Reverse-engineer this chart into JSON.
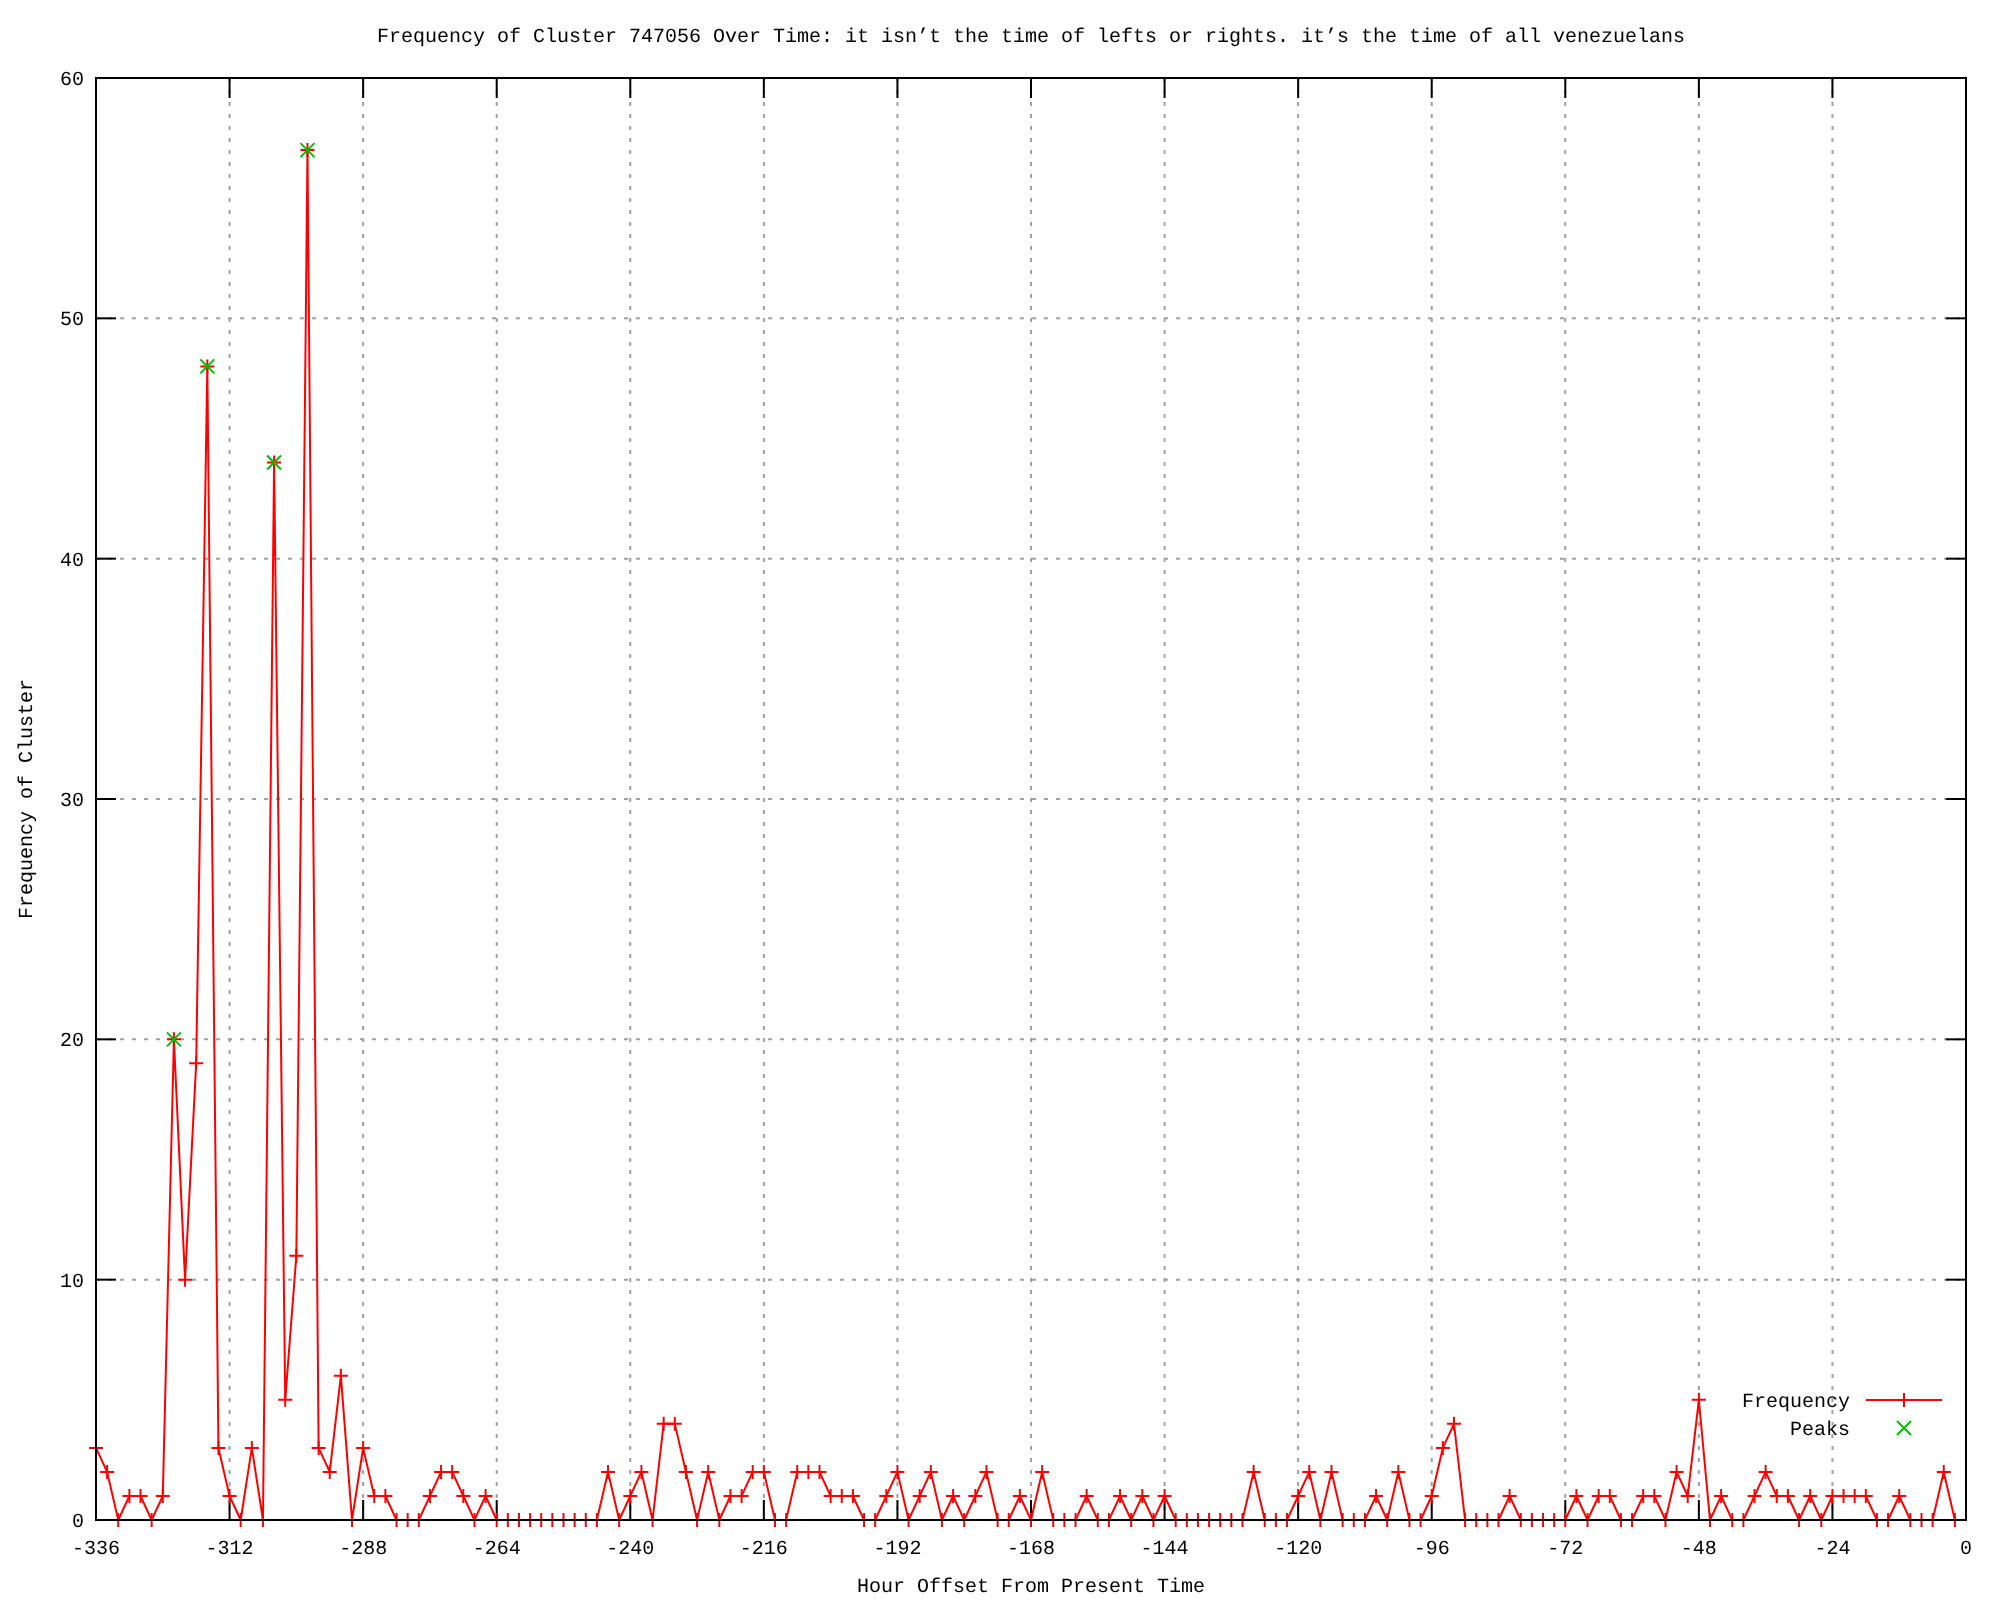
{
  "chart_data": {
    "type": "line",
    "title": "Frequency of Cluster 747056 Over Time: it isn’t the time of lefts or rights. it’s the time of all venezuelans",
    "xlabel": "Hour Offset From Present Time",
    "ylabel": "Frequency of Cluster",
    "xlim": [
      -336,
      0
    ],
    "ylim": [
      0,
      60
    ],
    "xticks": [
      -336,
      -312,
      -288,
      -264,
      -240,
      -216,
      -192,
      -168,
      -144,
      -120,
      -96,
      -72,
      -48,
      -24,
      0
    ],
    "yticks": [
      0,
      10,
      20,
      30,
      40,
      50,
      60
    ],
    "grid": true,
    "legend": "bottom right",
    "series": [
      {
        "name": "Frequency",
        "color": "#ff0000",
        "marker": "cross",
        "x": [
          -336,
          -334,
          -332,
          -330,
          -328,
          -326,
          -324,
          -322,
          -320,
          -318,
          -316,
          -314,
          -312,
          -310,
          -308,
          -306,
          -304,
          -302,
          -300,
          -298,
          -296,
          -294,
          -292,
          -290,
          -288,
          -286,
          -284,
          -282,
          -280,
          -278,
          -276,
          -274,
          -272,
          -270,
          -268,
          -266,
          -264,
          -262,
          -260,
          -258,
          -256,
          -254,
          -252,
          -250,
          -248,
          -246,
          -244,
          -242,
          -240,
          -238,
          -236,
          -234,
          -232,
          -230,
          -228,
          -226,
          -224,
          -222,
          -220,
          -218,
          -216,
          -214,
          -212,
          -210,
          -208,
          -206,
          -204,
          -202,
          -200,
          -198,
          -196,
          -194,
          -192,
          -190,
          -188,
          -186,
          -184,
          -182,
          -180,
          -178,
          -176,
          -174,
          -172,
          -170,
          -168,
          -166,
          -164,
          -162,
          -160,
          -158,
          -156,
          -154,
          -152,
          -150,
          -148,
          -146,
          -144,
          -142,
          -140,
          -138,
          -136,
          -134,
          -132,
          -130,
          -128,
          -126,
          -124,
          -122,
          -120,
          -118,
          -116,
          -114,
          -112,
          -110,
          -108,
          -106,
          -104,
          -102,
          -100,
          -98,
          -96,
          -94,
          -92,
          -90,
          -88,
          -86,
          -84,
          -82,
          -80,
          -78,
          -76,
          -74,
          -72,
          -70,
          -68,
          -66,
          -64,
          -62,
          -60,
          -58,
          -56,
          -54,
          -52,
          -50,
          -48,
          -46,
          -44,
          -42,
          -40,
          -38,
          -36,
          -34,
          -32,
          -30,
          -28,
          -26,
          -24,
          -22,
          -20,
          -18,
          -16,
          -14,
          -12,
          -10,
          -8,
          -6,
          -4,
          -2
        ],
        "values": [
          3,
          2,
          0,
          1,
          1,
          0,
          1,
          20,
          10,
          19,
          48,
          3,
          1,
          0,
          3,
          0,
          44,
          5,
          11,
          57,
          3,
          2,
          6,
          0,
          3,
          1,
          1,
          0,
          0,
          0,
          1,
          2,
          2,
          1,
          0,
          1,
          0,
          0,
          0,
          0,
          0,
          0,
          0,
          0,
          0,
          0,
          2,
          0,
          1,
          2,
          0,
          4,
          4,
          2,
          0,
          2,
          0,
          1,
          1,
          2,
          2,
          0,
          0,
          2,
          2,
          2,
          1,
          1,
          1,
          0,
          0,
          1,
          2,
          0,
          1,
          2,
          0,
          1,
          0,
          1,
          2,
          0,
          0,
          1,
          0,
          2,
          0,
          0,
          0,
          1,
          0,
          0,
          1,
          0,
          1,
          0,
          1,
          0,
          0,
          0,
          0,
          0,
          0,
          0,
          2,
          0,
          0,
          0,
          1,
          2,
          0,
          2,
          0,
          0,
          0,
          1,
          0,
          2,
          0,
          0,
          1,
          3,
          4,
          0,
          0,
          0,
          0,
          1,
          0,
          0,
          0,
          0,
          0,
          1,
          0,
          1,
          1,
          0,
          0,
          1,
          1,
          0,
          2,
          1,
          5,
          0,
          1,
          0,
          0,
          1,
          2,
          1,
          1,
          0,
          1,
          0,
          1,
          1,
          1,
          1,
          0,
          0,
          1,
          0,
          0,
          0,
          2,
          0
        ]
      },
      {
        "name": "Peaks",
        "type": "scatter",
        "color": "#00c000",
        "marker": "cross",
        "x": [
          -322,
          -316,
          -304,
          -298
        ],
        "values": [
          20,
          48,
          44,
          57
        ]
      }
    ]
  }
}
